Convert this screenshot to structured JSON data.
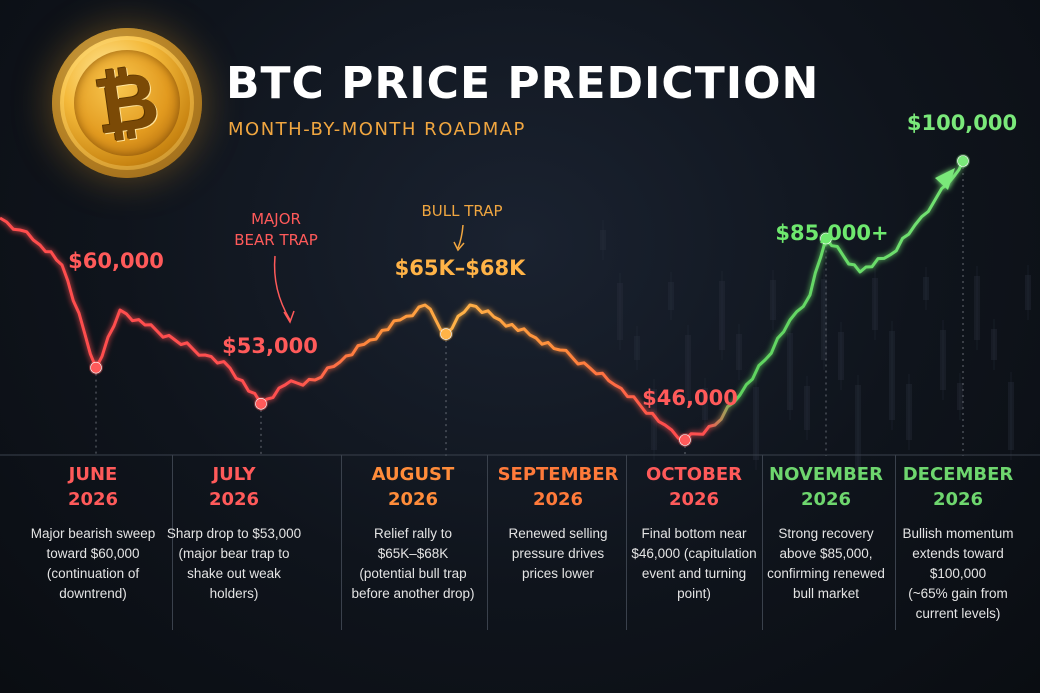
{
  "header": {
    "title": "BTC PRICE PREDICTION",
    "subtitle": "MONTH-BY-MONTH ROADMAP",
    "logo_icon": "bitcoin-coin-icon",
    "logo_glyph": "₿"
  },
  "chart_data": {
    "type": "line",
    "title": "BTC PRICE PREDICTION",
    "subtitle": "MONTH-BY-MONTH ROADMAP",
    "xlabel": "",
    "ylabel": "",
    "grid": false,
    "categories": [
      "JUNE 2026",
      "JULY 2026",
      "AUGUST 2026",
      "SEPTEMBER 2026",
      "OCTOBER 2026",
      "NOVEMBER 2026",
      "DECEMBER 2026"
    ],
    "key_points": [
      {
        "month": "JUNE 2026",
        "label": "$60,000",
        "value": 60000,
        "color": "#ff5a5a"
      },
      {
        "month": "JULY 2026",
        "label": "$53,000",
        "value": 53000,
        "color": "#ff5a5a"
      },
      {
        "month": "AUGUST 2026",
        "label": "$65K–$68K",
        "value": 66500,
        "color": "#ffb347"
      },
      {
        "month": "OCTOBER 2026",
        "label": "$46,000",
        "value": 46000,
        "color": "#ff5a5a"
      },
      {
        "month": "NOVEMBER 2026",
        "label": "$85,000+",
        "value": 85000,
        "color": "#6ee86e"
      },
      {
        "month": "DECEMBER 2026",
        "label": "$100,000",
        "value": 100000,
        "color": "#7ae87a"
      }
    ],
    "annotations": [
      {
        "text": "MAJOR",
        "color": "#ff5a5a"
      },
      {
        "text": "BEAR TRAP",
        "color": "#ff5a5a"
      },
      {
        "text": "BULL TRAP",
        "color": "#f0a640"
      }
    ],
    "colors": {
      "bear": "#ff4d4d",
      "transition": "#ff8c3a",
      "bull_trap": "#ffb347",
      "bull": "#5fd35f"
    }
  },
  "months": [
    {
      "name": "JUNE",
      "year": "2026",
      "color": "#ff5a5a",
      "desc": [
        "Major bearish sweep",
        "toward $60,000",
        "(continuation of",
        "downtrend)"
      ]
    },
    {
      "name": "JULY",
      "year": "2026",
      "color": "#ff5a5a",
      "desc": [
        "Sharp drop to $53,000",
        "(major bear trap to",
        "shake out weak",
        "holders)"
      ]
    },
    {
      "name": "AUGUST",
      "year": "2026",
      "color": "#ff8c3a",
      "desc": [
        "Relief rally to",
        "$65K–$68K",
        "(potential bull trap",
        "before another drop)"
      ]
    },
    {
      "name": "SEPTEMBER",
      "year": "2026",
      "color": "#ff7a3a",
      "desc": [
        "Renewed selling",
        "pressure drives",
        "prices lower"
      ]
    },
    {
      "name": "OCTOBER",
      "year": "2026",
      "color": "#ff5a5a",
      "desc": [
        "Final bottom near",
        "$46,000 (capitulation",
        "event and turning",
        "point)"
      ]
    },
    {
      "name": "NOVEMBER",
      "year": "2026",
      "color": "#6ed66e",
      "desc": [
        "Strong recovery",
        "above $85,000,",
        "confirming renewed",
        "bull market"
      ]
    },
    {
      "name": "DECEMBER",
      "year": "2026",
      "color": "#6ed66e",
      "desc": [
        "Bullish momentum",
        "extends toward",
        "$100,000",
        "(~65% gain from",
        "current levels)"
      ]
    }
  ]
}
